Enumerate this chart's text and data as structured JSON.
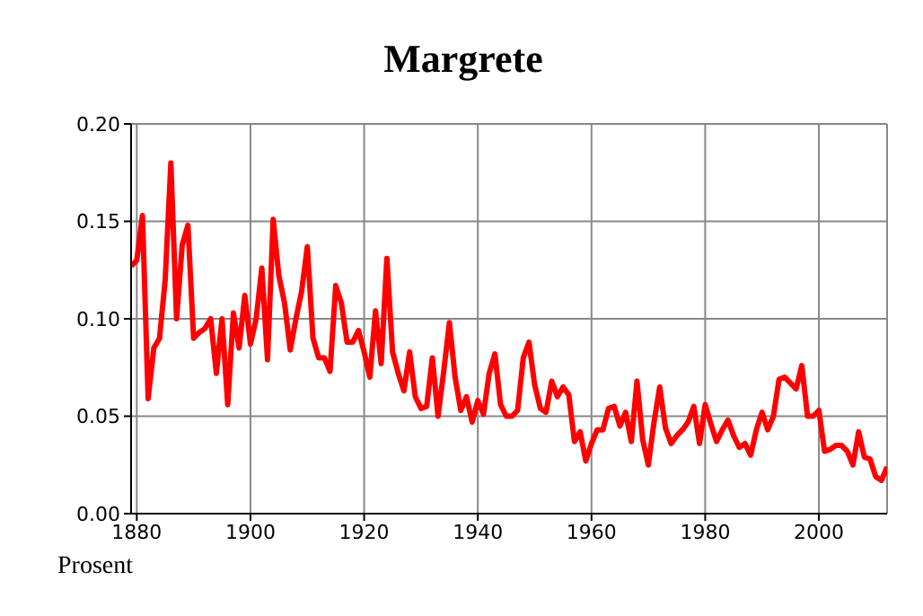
{
  "chart_data": {
    "type": "line",
    "title": "Margrete",
    "ylabel": "Prosent",
    "x": [
      1879,
      1880,
      1881,
      1882,
      1883,
      1884,
      1885,
      1886,
      1887,
      1888,
      1889,
      1890,
      1891,
      1892,
      1893,
      1894,
      1895,
      1896,
      1897,
      1898,
      1899,
      1900,
      1901,
      1902,
      1903,
      1904,
      1905,
      1906,
      1907,
      1908,
      1909,
      1910,
      1911,
      1912,
      1913,
      1914,
      1915,
      1916,
      1917,
      1918,
      1919,
      1920,
      1921,
      1922,
      1923,
      1924,
      1925,
      1926,
      1927,
      1928,
      1929,
      1930,
      1931,
      1932,
      1933,
      1934,
      1935,
      1936,
      1937,
      1938,
      1939,
      1940,
      1941,
      1942,
      1943,
      1944,
      1945,
      1946,
      1947,
      1948,
      1949,
      1950,
      1951,
      1952,
      1953,
      1954,
      1955,
      1956,
      1957,
      1958,
      1959,
      1960,
      1961,
      1962,
      1963,
      1964,
      1965,
      1966,
      1967,
      1968,
      1969,
      1970,
      1971,
      1972,
      1973,
      1974,
      1975,
      1976,
      1977,
      1978,
      1979,
      1980,
      1981,
      1982,
      1983,
      1984,
      1985,
      1986,
      1987,
      1988,
      1989,
      1990,
      1991,
      1992,
      1993,
      1994,
      1995,
      1996,
      1997,
      1998,
      1999,
      2000,
      2001,
      2002,
      2003,
      2004,
      2005,
      2006,
      2007,
      2008,
      2009,
      2010,
      2011,
      2012
    ],
    "series": [
      {
        "color": "#ff0000",
        "values": [
          0.127,
          0.13,
          0.153,
          0.059,
          0.085,
          0.09,
          0.12,
          0.18,
          0.1,
          0.138,
          0.148,
          0.09,
          0.093,
          0.095,
          0.1,
          0.072,
          0.1,
          0.056,
          0.103,
          0.085,
          0.112,
          0.087,
          0.1,
          0.126,
          0.079,
          0.151,
          0.122,
          0.108,
          0.084,
          0.1,
          0.114,
          0.137,
          0.09,
          0.08,
          0.08,
          0.073,
          0.117,
          0.108,
          0.088,
          0.088,
          0.094,
          0.083,
          0.07,
          0.104,
          0.077,
          0.131,
          0.083,
          0.072,
          0.063,
          0.083,
          0.06,
          0.054,
          0.055,
          0.08,
          0.05,
          0.073,
          0.098,
          0.07,
          0.053,
          0.06,
          0.047,
          0.058,
          0.051,
          0.072,
          0.082,
          0.056,
          0.05,
          0.05,
          0.053,
          0.08,
          0.088,
          0.066,
          0.054,
          0.052,
          0.068,
          0.06,
          0.065,
          0.061,
          0.037,
          0.042,
          0.027,
          0.036,
          0.043,
          0.043,
          0.054,
          0.055,
          0.045,
          0.052,
          0.037,
          0.068,
          0.038,
          0.025,
          0.047,
          0.065,
          0.044,
          0.036,
          0.04,
          0.043,
          0.047,
          0.055,
          0.036,
          0.056,
          0.046,
          0.037,
          0.043,
          0.048,
          0.04,
          0.034,
          0.036,
          0.03,
          0.043,
          0.052,
          0.043,
          0.05,
          0.069,
          0.07,
          0.067,
          0.064,
          0.076,
          0.05,
          0.05,
          0.053,
          0.032,
          0.033,
          0.035,
          0.035,
          0.032,
          0.025,
          0.042,
          0.029,
          0.028,
          0.019,
          0.017,
          0.024
        ]
      }
    ],
    "xlim": [
      1879,
      2012
    ],
    "xticks": [
      1880,
      1900,
      1920,
      1940,
      1960,
      1980,
      2000
    ],
    "ylim": [
      0,
      0.2
    ],
    "yticks": [
      {
        "value": 0,
        "label": "0.00"
      },
      {
        "value": 0.05,
        "label": "0.05"
      },
      {
        "value": 0.1,
        "label": "0.10"
      },
      {
        "value": 0.15,
        "label": "0.15"
      },
      {
        "value": 0.2,
        "label": "0.20"
      }
    ],
    "grid": true,
    "marker": "none",
    "line_style": "solid",
    "legend": false
  }
}
